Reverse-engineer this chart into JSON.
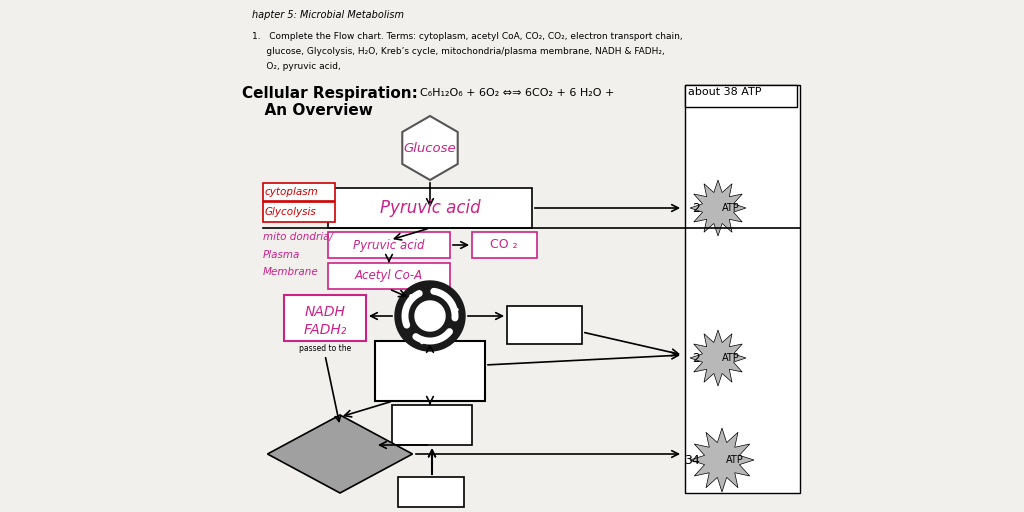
{
  "bg_color": "#e8e6e3",
  "page_color": "#f5f4f2",
  "header": "hapter 5: Microbial Metabolism",
  "q_line1": "1.   Complete the Flow chart. Terms: cytoplasm, acetyl CoA, CO₂, CO₂, electron transport chain,",
  "q_line2": "     glucose, Glycolysis, H₂O, Kreb’s cycle, mitochondria/plasma membrane, NADH & FADH₂,",
  "q_line3": "     O₂, pyruvic acid,",
  "title1": "Cellular Respiration:",
  "title2": "  An Overview",
  "equation": "C₆H₁₂O₆ + 6O₂ ⇔⇒ 6CO₂ + 6 H₂O + ",
  "atp_box_text": "about 38 ATP",
  "glucose_text": "Glucose",
  "pyruvic_top": "Pyruvic acid",
  "cytoplasm_line1": "cytoplasm",
  "cytoplasm_line2": "Glycolysis",
  "mito_line1": "mito dondria/",
  "mito_line2": "Plasma",
  "mito_line3": "Membrane",
  "pyruvic_small": "Pyruvic acid",
  "acetyl": "Acetyl Co-A",
  "co2_text": "CO ₂",
  "nadh_line1": "NADH",
  "nadh_line2": "FADH₂",
  "passed_text": "passed to the",
  "pink": "#cc2288",
  "red": "#cc0000",
  "dark": "#222222",
  "gray_diamond": "#a0a0a0",
  "gray_star": "#b8b8b8"
}
